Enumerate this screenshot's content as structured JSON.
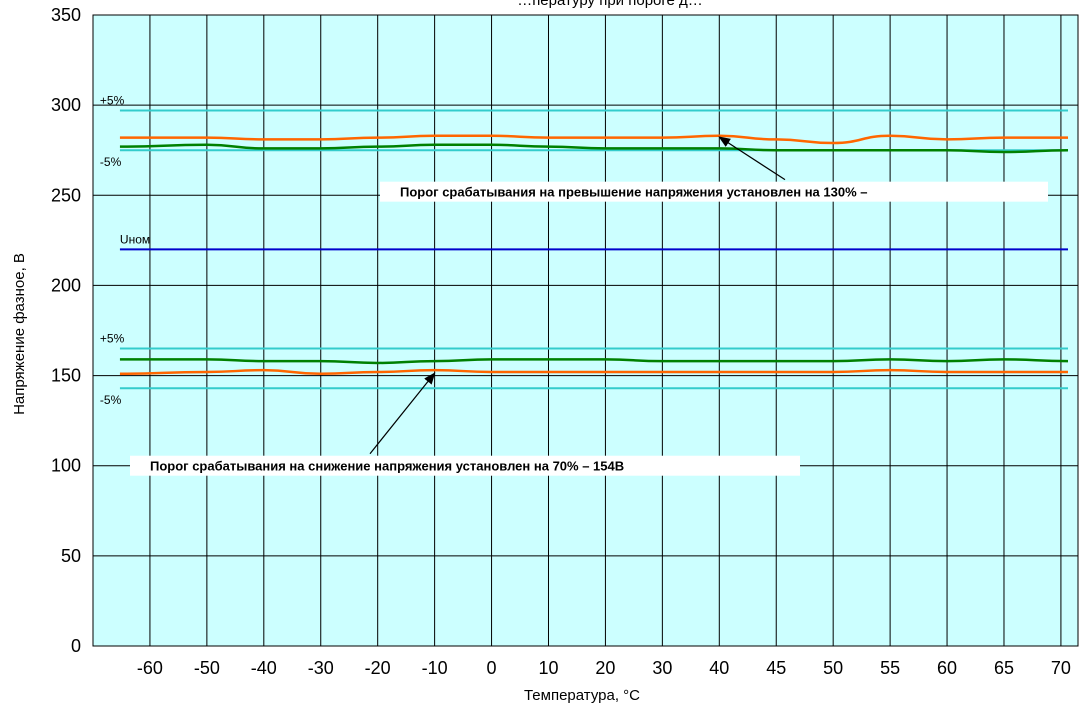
{
  "chart_data": {
    "type": "line",
    "title": "…пературу при пороге д…",
    "xlabel": "Температура, °C",
    "ylabel": "Напряжение фазное, В",
    "ylim": [
      0,
      350
    ],
    "y_ticks": [
      0,
      50,
      100,
      150,
      200,
      250,
      300,
      350
    ],
    "categories": [
      "-60",
      "-50",
      "-40",
      "-30",
      "-20",
      "-10",
      "0",
      "10",
      "20",
      "30",
      "40",
      "45",
      "50",
      "55",
      "60",
      "65",
      "70"
    ],
    "grid": true,
    "background_color": "#ccffff",
    "series": [
      {
        "name": "",
        "color": "#ff6600",
        "role": "upper threshold",
        "values": [
          282,
          282,
          281,
          281,
          282,
          283,
          283,
          282,
          282,
          282,
          283,
          281,
          279,
          283,
          281,
          282,
          282
        ]
      },
      {
        "name": "",
        "color": "#008000",
        "role": "upper threshold",
        "values": [
          277,
          278,
          276,
          276,
          277,
          278,
          278,
          277,
          276,
          276,
          276,
          275,
          275,
          275,
          275,
          274,
          275
        ]
      },
      {
        "name": "",
        "color": "#008000",
        "role": "lower threshold",
        "values": [
          159,
          159,
          158,
          158,
          157,
          158,
          159,
          159,
          159,
          158,
          158,
          158,
          158,
          159,
          158,
          159,
          158
        ]
      },
      {
        "name": "",
        "color": "#ff6600",
        "role": "lower threshold",
        "values": [
          151,
          152,
          153,
          151,
          152,
          153,
          152,
          152,
          152,
          152,
          152,
          152,
          152,
          153,
          152,
          152,
          152
        ]
      }
    ],
    "reference_lines": [
      {
        "value": 297,
        "color": "#33cccc",
        "label": "+5%"
      },
      {
        "value": 275,
        "color": "#33cccc",
        "label": "-5%"
      },
      {
        "value": 220,
        "color": "#0000cc",
        "label": "Uном"
      },
      {
        "value": 165,
        "color": "#33cccc",
        "label": "+5%"
      },
      {
        "value": 143,
        "color": "#33cccc",
        "label": "-5%"
      }
    ],
    "annotations": [
      {
        "text": "Порог срабатывания на превышение напряжения установлен на 130% –",
        "y": 252,
        "arrow_to": {
          "x_category": "40",
          "y": 284
        }
      },
      {
        "text": "Порог срабатывания на снижение напряжения установлен на 70% – 154В",
        "y": 100,
        "arrow_to": {
          "x_category": "-10",
          "y": 153
        }
      }
    ]
  }
}
